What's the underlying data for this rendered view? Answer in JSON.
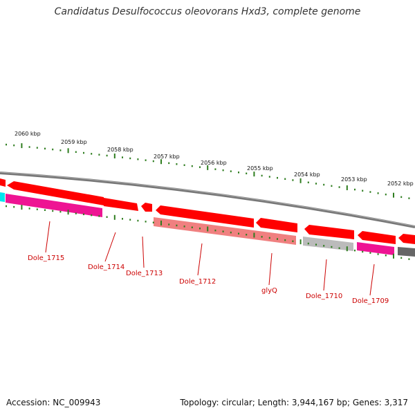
{
  "title": "Candidatus Desulfococcus oleovorans Hxd3, complete genome",
  "footer": {
    "accession": "Accession: NC_009943",
    "summary": "Topology: circular; Length: 3,944,167 bp; Genes: 3,317"
  },
  "colors": {
    "backbone": "#888888",
    "tick": "#2e7d1f",
    "gene_label": "#cc0000",
    "cds_forward": "#ff0000",
    "cds_pale": "#f08080",
    "cds_magenta": "#ee1493",
    "cds_gray": "#bbbbbb",
    "cds_dark": "#666666",
    "cds_cyan": "#00e5ee"
  },
  "scale_labels": [
    "2060 kbp",
    "2059 kbp",
    "2058 kbp",
    "2057 kbp",
    "2056 kbp",
    "2055 kbp",
    "2054 kbp",
    "2053 kbp",
    "2052 kbp"
  ],
  "genes": [
    {
      "label": "Dole_1715",
      "color": "cds_magenta"
    },
    {
      "label": "Dole_1714",
      "color": "cds_forward"
    },
    {
      "label": "Dole_1713",
      "color": "cds_forward"
    },
    {
      "label": "Dole_1712",
      "color": "cds_pale"
    },
    {
      "label": "glyQ",
      "color": "cds_forward"
    },
    {
      "label": "Dole_1710",
      "color": "cds_gray"
    },
    {
      "label": "Dole_1709",
      "color": "cds_magenta"
    }
  ]
}
